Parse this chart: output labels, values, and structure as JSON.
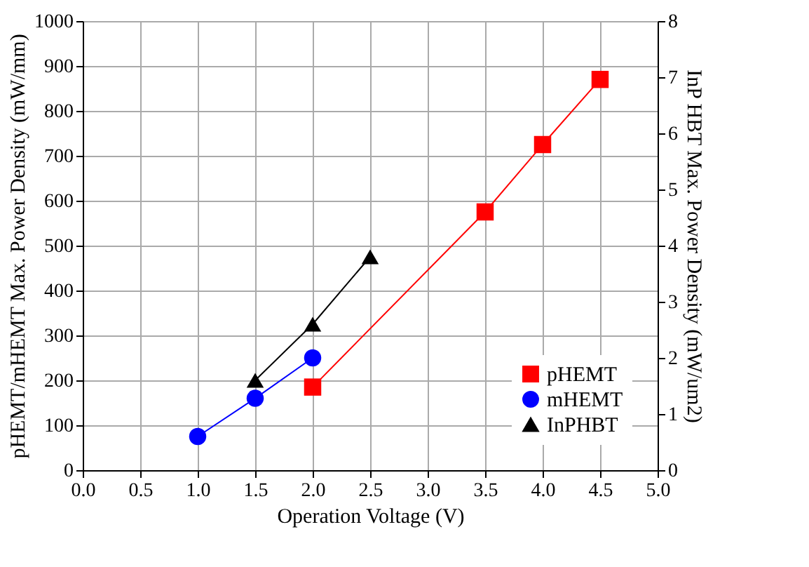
{
  "chart_data": {
    "type": "line",
    "xlabel": "Operation Voltage (V)",
    "ylabel": "pHEMT/mHEMT Max. Power Density (mW/mm)",
    "y2label": "InP HBT Max. Power Density (mW/um2)",
    "xlim": [
      0,
      5
    ],
    "xticks": [
      {
        "value": 0,
        "label": "0.0"
      },
      {
        "value": 0.5,
        "label": "0.5"
      },
      {
        "value": 1,
        "label": "1.0"
      },
      {
        "value": 1.5,
        "label": "1.5"
      },
      {
        "value": 2,
        "label": "2.0"
      },
      {
        "value": 2.5,
        "label": "2.5"
      },
      {
        "value": 3,
        "label": "3.0"
      },
      {
        "value": 3.5,
        "label": "3.5"
      },
      {
        "value": 4,
        "label": "4.0"
      },
      {
        "value": 4.5,
        "label": "4.5"
      },
      {
        "value": 5,
        "label": "5.0"
      }
    ],
    "ylim": [
      0,
      1000
    ],
    "yticks": [
      0,
      100,
      200,
      300,
      400,
      500,
      600,
      700,
      800,
      900,
      1000
    ],
    "y2lim": [
      0,
      8
    ],
    "y2ticks": [
      0,
      1,
      2,
      3,
      4,
      5,
      6,
      7,
      8
    ],
    "grid": true,
    "legend": "bottom right",
    "line_style": "solid",
    "series": [
      {
        "name": "pHEMT",
        "color": "#ff0000",
        "marker": "square",
        "x": [
          2.0,
          3.5,
          4.0,
          4.5
        ],
        "values": [
          185,
          575,
          725,
          870
        ]
      },
      {
        "name": "mHEMT",
        "color": "#0000ff",
        "marker": "circle",
        "x": [
          1.0,
          1.5,
          2.0
        ],
        "values": [
          75,
          160,
          250
        ]
      },
      {
        "name": "InPHBT",
        "color": "#000000",
        "marker": "triangle",
        "axis": "y2",
        "x": [
          1.5,
          2.0,
          2.5
        ],
        "values": [
          1.6,
          2.6,
          3.8
        ]
      }
    ]
  }
}
